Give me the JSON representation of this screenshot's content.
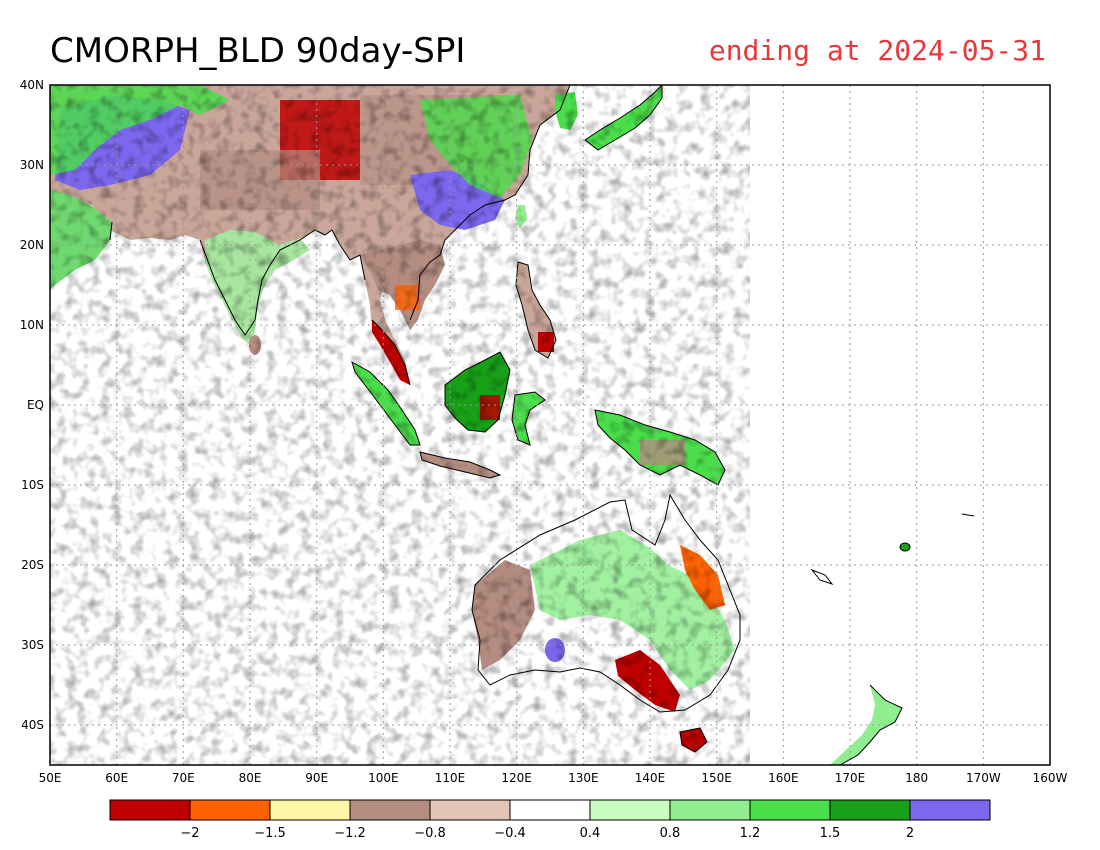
{
  "title": "CMORPH_BLD 90day-SPI",
  "subtitle": "ending at 2024-05-31",
  "colors": {
    "title": "#000000",
    "subtitle": "#e8383b",
    "ocean": "#ffffff",
    "grid": "#9a9a9a",
    "coast": "#000000"
  },
  "axes": {
    "lat_labels": [
      "40N",
      "30N",
      "20N",
      "10N",
      "EQ",
      "10S",
      "20S",
      "30S",
      "40S"
    ],
    "lon_labels": [
      "50E",
      "60E",
      "70E",
      "80E",
      "90E",
      "100E",
      "110E",
      "120E",
      "130E",
      "140E",
      "150E",
      "160E",
      "170E",
      "180",
      "170W",
      "160W"
    ]
  },
  "legend": {
    "colors": [
      "#c00000",
      "#ff6000",
      "#fff7a8",
      "#b48c80",
      "#e5c4b8",
      "#ffffff",
      "#c8ffc0",
      "#90ee90",
      "#4ade4a",
      "#18a018",
      "#7b68ee"
    ],
    "labels": [
      "-2",
      "-1.5",
      "-1.2",
      "-0.8",
      "-0.4",
      "0.4",
      "0.8",
      "1.2",
      "1.5",
      "2"
    ]
  }
}
